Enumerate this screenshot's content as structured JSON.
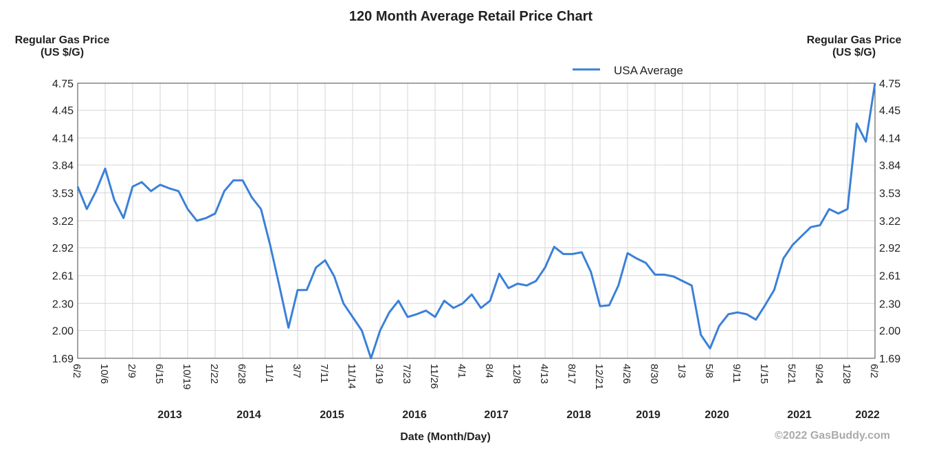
{
  "chart_data": {
    "type": "line",
    "title": "120 Month Average Retail Price Chart",
    "y_label": "Regular Gas Price (US $/G)",
    "y2_label": "Regular Gas Price (US $/G)",
    "x_label": "Date (Month/Day)",
    "credit": "©2022 GasBuddy.com",
    "x_tick_labels": [
      "6/2",
      "10/6",
      "2/9",
      "6/15",
      "10/19",
      "2/22",
      "6/28",
      "11/1",
      "3/7",
      "7/11",
      "11/14",
      "3/19",
      "7/23",
      "11/26",
      "4/1",
      "8/4",
      "12/8",
      "4/13",
      "8/17",
      "12/21",
      "4/26",
      "8/30",
      "1/3",
      "5/8",
      "9/11",
      "1/15",
      "5/21",
      "9/24",
      "1/28",
      "6/2"
    ],
    "year_labels": [
      "2013",
      "2014",
      "2015",
      "2016",
      "2017",
      "2018",
      "2019",
      "2020",
      "2021",
      "2022"
    ],
    "ylim": [
      1.69,
      4.75
    ],
    "yticks": [
      1.69,
      {
        "value": 2,
        "label": "2.00"
      },
      {
        "value": 2.3,
        "label": "2.30"
      },
      2.61,
      2.92,
      3.22,
      3.53,
      3.84,
      4.14,
      4.45,
      4.75
    ],
    "grid": true,
    "legend": "top-right",
    "series": [
      {
        "name": "USA Average",
        "color": "#3a80d9",
        "values": [
          3.6,
          3.35,
          3.55,
          3.8,
          3.45,
          3.25,
          3.6,
          3.65,
          3.55,
          3.62,
          3.58,
          3.55,
          3.35,
          3.22,
          3.25,
          3.3,
          3.55,
          3.67,
          3.67,
          3.48,
          3.35,
          2.95,
          2.5,
          2.03,
          2.45,
          2.45,
          2.7,
          2.78,
          2.6,
          2.3,
          2.15,
          2.0,
          1.69,
          2.0,
          2.2,
          2.33,
          2.15,
          2.18,
          2.22,
          2.15,
          2.33,
          2.25,
          2.3,
          2.4,
          2.25,
          2.33,
          2.63,
          2.47,
          2.52,
          2.5,
          2.55,
          2.7,
          2.93,
          2.85,
          2.85,
          2.87,
          2.65,
          2.27,
          2.28,
          2.5,
          2.86,
          2.8,
          2.75,
          2.62,
          2.62,
          2.6,
          2.55,
          2.5,
          1.95,
          1.8,
          2.05,
          2.18,
          2.2,
          2.18,
          2.12,
          2.28,
          2.45,
          2.8,
          2.95,
          3.05,
          3.15,
          3.17,
          3.35,
          3.3,
          3.35,
          4.3,
          4.1,
          4.75
        ]
      }
    ]
  }
}
